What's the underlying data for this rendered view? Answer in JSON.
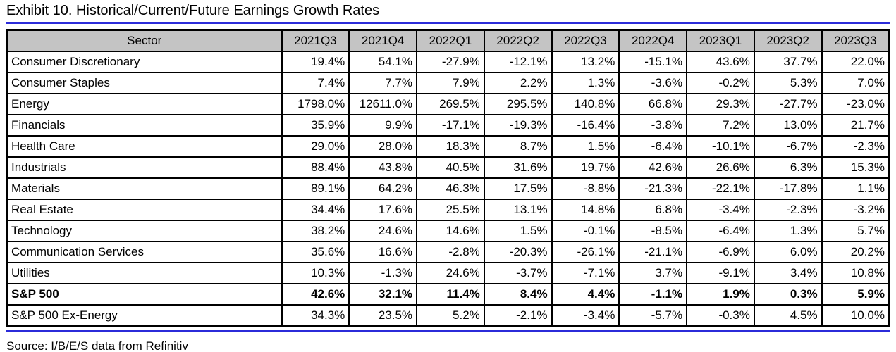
{
  "title": "Exhibit 10. Historical/Current/Future Earnings Growth Rates",
  "source": "Source: I/B/E/S data from Refinitiv",
  "colors": {
    "accent_blue": "#2b2bd9",
    "header_gray": "#c4c4c4",
    "grid_black": "#000000"
  },
  "chart_data": {
    "type": "table",
    "title": "Exhibit 10. Historical/Current/Future Earnings Growth Rates",
    "columns": [
      "Sector",
      "2021Q3",
      "2021Q4",
      "2022Q1",
      "2022Q2",
      "2022Q3",
      "2022Q4",
      "2023Q1",
      "2023Q2",
      "2023Q3"
    ],
    "rows": [
      {
        "sector": "Consumer Discretionary",
        "bold": false,
        "values": [
          "19.4%",
          "54.1%",
          "-27.9%",
          "-12.1%",
          "13.2%",
          "-15.1%",
          "43.6%",
          "37.7%",
          "22.0%"
        ]
      },
      {
        "sector": "Consumer Staples",
        "bold": false,
        "values": [
          "7.4%",
          "7.7%",
          "7.9%",
          "2.2%",
          "1.3%",
          "-3.6%",
          "-0.2%",
          "5.3%",
          "7.0%"
        ]
      },
      {
        "sector": "Energy",
        "bold": false,
        "values": [
          "1798.0%",
          "12611.0%",
          "269.5%",
          "295.5%",
          "140.8%",
          "66.8%",
          "29.3%",
          "-27.7%",
          "-23.0%"
        ]
      },
      {
        "sector": "Financials",
        "bold": false,
        "values": [
          "35.9%",
          "9.9%",
          "-17.1%",
          "-19.3%",
          "-16.4%",
          "-3.8%",
          "7.2%",
          "13.0%",
          "21.7%"
        ]
      },
      {
        "sector": "Health Care",
        "bold": false,
        "values": [
          "29.0%",
          "28.0%",
          "18.3%",
          "8.7%",
          "1.5%",
          "-6.4%",
          "-10.1%",
          "-6.7%",
          "-2.3%"
        ]
      },
      {
        "sector": "Industrials",
        "bold": false,
        "values": [
          "88.4%",
          "43.8%",
          "40.5%",
          "31.6%",
          "19.7%",
          "42.6%",
          "26.6%",
          "6.3%",
          "15.3%"
        ]
      },
      {
        "sector": "Materials",
        "bold": false,
        "values": [
          "89.1%",
          "64.2%",
          "46.3%",
          "17.5%",
          "-8.8%",
          "-21.3%",
          "-22.1%",
          "-17.8%",
          "1.1%"
        ]
      },
      {
        "sector": "Real Estate",
        "bold": false,
        "values": [
          "34.4%",
          "17.6%",
          "25.5%",
          "13.1%",
          "14.8%",
          "6.8%",
          "-3.4%",
          "-2.3%",
          "-3.2%"
        ]
      },
      {
        "sector": "Technology",
        "bold": false,
        "values": [
          "38.2%",
          "24.6%",
          "14.6%",
          "1.5%",
          "-0.1%",
          "-8.5%",
          "-6.4%",
          "1.3%",
          "5.7%"
        ]
      },
      {
        "sector": "Communication Services",
        "bold": false,
        "values": [
          "35.6%",
          "16.6%",
          "-2.8%",
          "-20.3%",
          "-26.1%",
          "-21.1%",
          "-6.9%",
          "6.0%",
          "20.2%"
        ]
      },
      {
        "sector": "Utilities",
        "bold": false,
        "values": [
          "10.3%",
          "-1.3%",
          "24.6%",
          "-3.7%",
          "-7.1%",
          "3.7%",
          "-9.1%",
          "3.4%",
          "10.8%"
        ]
      },
      {
        "sector": "S&P 500",
        "bold": true,
        "values": [
          "42.6%",
          "32.1%",
          "11.4%",
          "8.4%",
          "4.4%",
          "-1.1%",
          "1.9%",
          "0.3%",
          "5.9%"
        ]
      },
      {
        "sector": "S&P 500 Ex-Energy",
        "bold": false,
        "values": [
          "34.3%",
          "23.5%",
          "5.2%",
          "-2.1%",
          "-3.4%",
          "-5.7%",
          "-0.3%",
          "4.5%",
          "10.0%"
        ]
      }
    ],
    "source": "Source: I/B/E/S data from Refinitiv",
    "layout_hints": {
      "header_background": "gray",
      "first_column_align": "left",
      "value_align": "right",
      "bold_row": "S&P 500"
    }
  }
}
